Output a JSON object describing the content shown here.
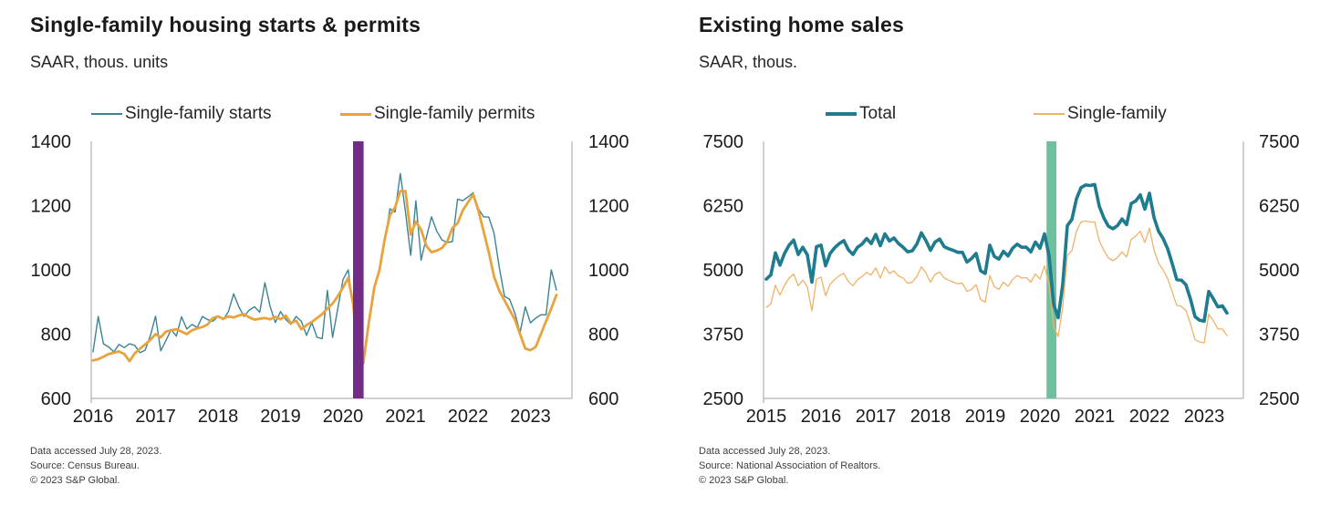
{
  "charts": [
    {
      "title": "Single-family housing starts & permits",
      "subtitle": "SAAR, thous. units",
      "legend": [
        {
          "label": "Single-family starts",
          "color": "#3a8494",
          "thickness": 2
        },
        {
          "label": "Single-family permits",
          "color": "#e8a33c",
          "thickness": 3
        }
      ],
      "footnotes": [
        "Data accessed July 28, 2023.",
        "Source: Census Bureau.",
        "© 2023 S&P Global."
      ]
    },
    {
      "title": "Existing home sales",
      "subtitle": "SAAR, thous.",
      "legend": [
        {
          "label": "Total",
          "color": "#1f7b8e",
          "thickness": 4
        },
        {
          "label": "Single-family",
          "color": "#eeb269",
          "thickness": 2
        }
      ],
      "footnotes": [
        "Data accessed July 28, 2023.",
        "Source: National Association of Realtors.",
        "© 2023 S&P Global."
      ]
    }
  ],
  "chart_data": [
    {
      "type": "line",
      "title": "Single-family housing starts & permits",
      "subtitle": "SAAR, thous. units",
      "x_unit": "monthly",
      "x_start": "2016-01",
      "x_end": "2023-06",
      "x_ticks": [
        2016,
        2017,
        2018,
        2019,
        2020,
        2021,
        2022,
        2023
      ],
      "y_ticks": [
        600,
        800,
        1000,
        1200,
        1400
      ],
      "ylim": [
        600,
        1400
      ],
      "y_axis_sides": "both",
      "grid": false,
      "legend_position": "top",
      "recession_band": {
        "from": 2020.16,
        "to": 2020.33,
        "color": "#722b87"
      },
      "series": [
        {
          "name": "Single-family starts",
          "color": "#3a8494",
          "width": 1.4,
          "values": [
            745,
            855,
            770,
            760,
            745,
            768,
            758,
            770,
            765,
            742,
            750,
            795,
            856,
            748,
            780,
            814,
            794,
            854,
            816,
            830,
            820,
            855,
            845,
            840,
            855,
            845,
            870,
            925,
            885,
            855,
            875,
            885,
            868,
            960,
            886,
            836,
            870,
            846,
            830,
            855,
            840,
            796,
            836,
            790,
            786,
            936,
            790,
            880,
            970,
            1000,
            876,
            676,
            710,
            835,
            950,
            1000,
            1090,
            1190,
            1180,
            1300,
            1180,
            1045,
            1215,
            1030,
            1100,
            1165,
            1120,
            1093,
            1085,
            1088,
            1220,
            1215,
            1227,
            1240,
            1190,
            1165,
            1164,
            1115,
            1008,
            918,
            908,
            865,
            805,
            885,
            835,
            850,
            860,
            860,
            1000,
            937
          ]
        },
        {
          "name": "Single-family permits",
          "color": "#e8a33c",
          "width": 2.8,
          "values": [
            718,
            722,
            730,
            738,
            742,
            746,
            738,
            716,
            740,
            755,
            768,
            782,
            800,
            790,
            808,
            812,
            815,
            808,
            800,
            812,
            818,
            822,
            830,
            850,
            855,
            848,
            855,
            852,
            858,
            862,
            852,
            845,
            848,
            850,
            846,
            854,
            846,
            858,
            834,
            842,
            815,
            828,
            838,
            850,
            862,
            880,
            895,
            918,
            945,
            975,
            890,
            665,
            722,
            840,
            945,
            1000,
            1095,
            1170,
            1195,
            1245,
            1245,
            1110,
            1150,
            1125,
            1075,
            1055,
            1060,
            1068,
            1088,
            1130,
            1145,
            1185,
            1210,
            1235,
            1185,
            1120,
            1055,
            980,
            935,
            905,
            875,
            845,
            800,
            755,
            750,
            760,
            800,
            840,
            880,
            922
          ]
        }
      ]
    },
    {
      "type": "line",
      "title": "Existing home sales",
      "subtitle": "SAAR, thous.",
      "x_unit": "monthly",
      "x_start": "2015-01",
      "x_end": "2023-06",
      "x_ticks": [
        2015,
        2016,
        2017,
        2018,
        2019,
        2020,
        2021,
        2022,
        2023
      ],
      "y_ticks": [
        2500,
        3750,
        5000,
        6250,
        7500
      ],
      "ylim": [
        2500,
        7500
      ],
      "y_axis_sides": "both",
      "grid": false,
      "legend_position": "top",
      "recession_band": {
        "from": 2020.12,
        "to": 2020.3,
        "color": "#6ec09e"
      },
      "series": [
        {
          "name": "Total",
          "color": "#1f7b8e",
          "width": 3.6,
          "values": [
            4820,
            4900,
            5330,
            5090,
            5320,
            5480,
            5580,
            5300,
            5440,
            5290,
            4760,
            5450,
            5480,
            5080,
            5320,
            5430,
            5510,
            5570,
            5390,
            5300,
            5440,
            5500,
            5610,
            5510,
            5690,
            5470,
            5700,
            5560,
            5620,
            5510,
            5440,
            5350,
            5370,
            5500,
            5720,
            5570,
            5380,
            5540,
            5600,
            5450,
            5410,
            5380,
            5340,
            5340,
            5150,
            5220,
            5320,
            4980,
            4930,
            5480,
            5260,
            5210,
            5360,
            5270,
            5420,
            5500,
            5440,
            5440,
            5350,
            5540,
            5420,
            5700,
            5270,
            4330,
            4070,
            4720,
            5860,
            5980,
            6380,
            6600,
            6650,
            6640,
            6660,
            6240,
            6010,
            5850,
            5800,
            5860,
            5990,
            5880,
            6290,
            6340,
            6460,
            6180,
            6490,
            6020,
            5750,
            5610,
            5410,
            5120,
            4810,
            4800,
            4710,
            4430,
            4090,
            4020,
            4000,
            4580,
            4440,
            4280,
            4300,
            4160
          ]
        },
        {
          "name": "Single-family",
          "color": "#eeb269",
          "width": 1.3,
          "values": [
            4270,
            4340,
            4700,
            4510,
            4700,
            4840,
            4920,
            4690,
            4800,
            4670,
            4200,
            4820,
            4860,
            4500,
            4720,
            4810,
            4890,
            4930,
            4770,
            4690,
            4810,
            4870,
            4950,
            4900,
            5040,
            4840,
            5060,
            4930,
            4980,
            4880,
            4840,
            4740,
            4760,
            4870,
            5060,
            4940,
            4760,
            4910,
            4960,
            4840,
            4800,
            4760,
            4730,
            4740,
            4580,
            4620,
            4710,
            4420,
            4370,
            4890,
            4670,
            4620,
            4760,
            4680,
            4810,
            4890,
            4840,
            4850,
            4760,
            4920,
            4820,
            5080,
            4700,
            3900,
            3700,
            4280,
            5280,
            5370,
            5750,
            5930,
            5950,
            5930,
            5930,
            5570,
            5380,
            5230,
            5180,
            5240,
            5350,
            5250,
            5590,
            5660,
            5750,
            5530,
            5810,
            5390,
            5130,
            5000,
            4830,
            4570,
            4310,
            4290,
            4210,
            3950,
            3640,
            3600,
            3580,
            4140,
            4010,
            3850,
            3850,
            3720
          ]
        }
      ]
    }
  ],
  "style": {
    "axis_color": "#b0b0b0",
    "tick_label_color": "#1a1a1a",
    "tick_font_size": 20
  }
}
